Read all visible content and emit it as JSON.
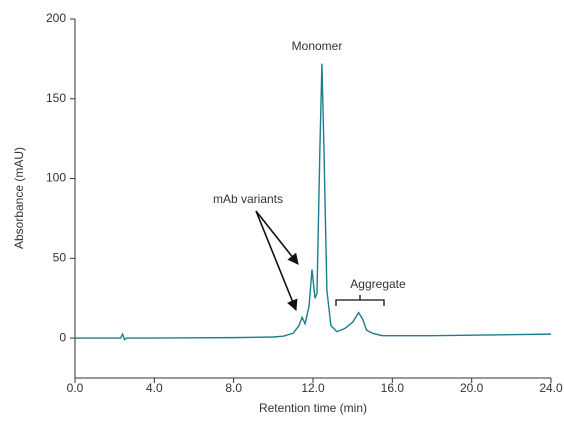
{
  "chart_data": {
    "type": "line",
    "x_label": "Retention time (min)",
    "y_label": "Absorbance (mAU)",
    "annotations": [
      "Monomer",
      "mAb variants",
      "Aggregate"
    ],
    "x": [
      0,
      1,
      2,
      2.3,
      2.4,
      2.5,
      2.6,
      4,
      6,
      8,
      10,
      10.5,
      11,
      11.3,
      11.45,
      11.6,
      11.8,
      11.95,
      12.1,
      12.2,
      12.35,
      12.45,
      12.55,
      12.7,
      12.9,
      13.2,
      13.6,
      14,
      14.3,
      14.5,
      14.7,
      15,
      15.5,
      18,
      21,
      24
    ],
    "values": [
      0,
      0,
      0,
      0,
      2.5,
      -1,
      0,
      0,
      0.2,
      0.3,
      0.7,
      1.2,
      3,
      8,
      13,
      9,
      20,
      43,
      25,
      28,
      120,
      172,
      120,
      30,
      8,
      4,
      6,
      10,
      16,
      12,
      5,
      3,
      1.5,
      1.5,
      2,
      2.5
    ],
    "color": "#1a7f8a",
    "xlim": [
      0,
      24
    ],
    "ylim": [
      -25,
      200
    ],
    "xticks": [
      {
        "value": 0,
        "label": "0.0"
      },
      {
        "value": 4,
        "label": "4.0"
      },
      {
        "value": 8,
        "label": "8.0"
      },
      {
        "value": 12,
        "label": "12.0"
      },
      {
        "value": 16,
        "label": "16.0"
      },
      {
        "value": 20,
        "label": "20.0"
      },
      {
        "value": 24,
        "label": "24.0"
      }
    ],
    "yticks": [
      0,
      50,
      100,
      150,
      200
    ]
  }
}
